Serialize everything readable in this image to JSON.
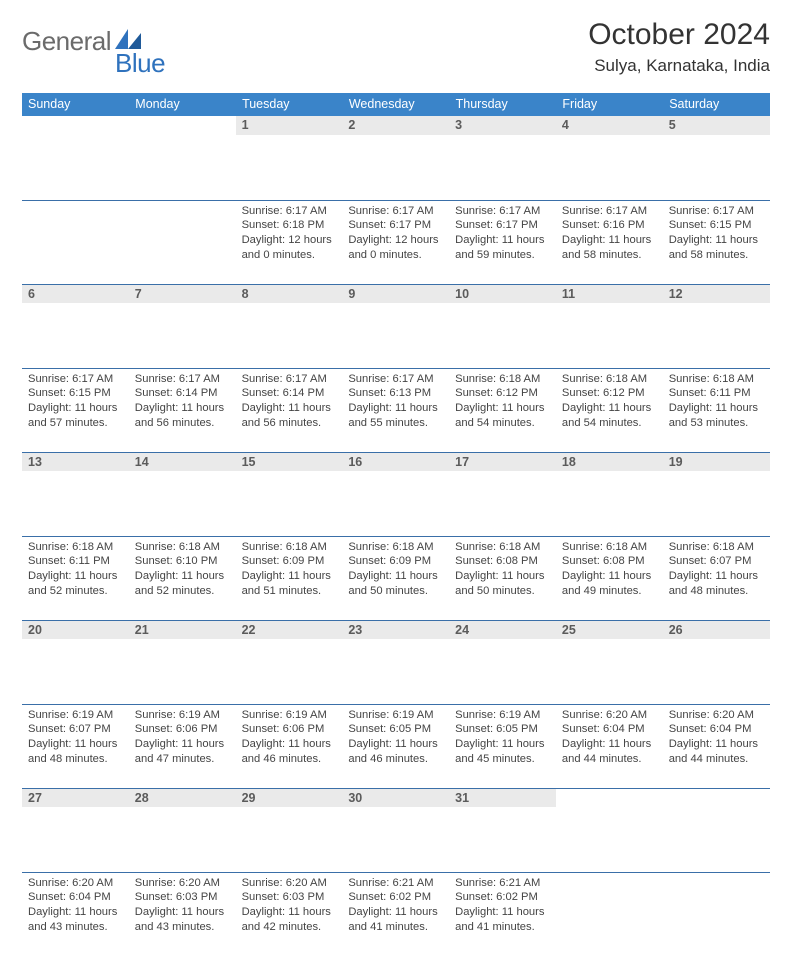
{
  "brand": {
    "word1": "General",
    "word2": "Blue",
    "word1_color": "#6b6b6b",
    "word2_color": "#2f72bd",
    "mark_color": "#2f72bd"
  },
  "title": {
    "month_year": "October 2024",
    "location": "Sulya, Karnataka, India"
  },
  "colors": {
    "header_bg": "#3a84c9",
    "header_text": "#ffffff",
    "daynum_bg": "#eaeaea",
    "row_divider": "#3a6fa8"
  },
  "weekdays": [
    "Sunday",
    "Monday",
    "Tuesday",
    "Wednesday",
    "Thursday",
    "Friday",
    "Saturday"
  ],
  "weeks": [
    [
      null,
      null,
      {
        "day": "1",
        "sunrise": "Sunrise: 6:17 AM",
        "sunset": "Sunset: 6:18 PM",
        "daylight1": "Daylight: 12 hours",
        "daylight2": "and 0 minutes."
      },
      {
        "day": "2",
        "sunrise": "Sunrise: 6:17 AM",
        "sunset": "Sunset: 6:17 PM",
        "daylight1": "Daylight: 12 hours",
        "daylight2": "and 0 minutes."
      },
      {
        "day": "3",
        "sunrise": "Sunrise: 6:17 AM",
        "sunset": "Sunset: 6:17 PM",
        "daylight1": "Daylight: 11 hours",
        "daylight2": "and 59 minutes."
      },
      {
        "day": "4",
        "sunrise": "Sunrise: 6:17 AM",
        "sunset": "Sunset: 6:16 PM",
        "daylight1": "Daylight: 11 hours",
        "daylight2": "and 58 minutes."
      },
      {
        "day": "5",
        "sunrise": "Sunrise: 6:17 AM",
        "sunset": "Sunset: 6:15 PM",
        "daylight1": "Daylight: 11 hours",
        "daylight2": "and 58 minutes."
      }
    ],
    [
      {
        "day": "6",
        "sunrise": "Sunrise: 6:17 AM",
        "sunset": "Sunset: 6:15 PM",
        "daylight1": "Daylight: 11 hours",
        "daylight2": "and 57 minutes."
      },
      {
        "day": "7",
        "sunrise": "Sunrise: 6:17 AM",
        "sunset": "Sunset: 6:14 PM",
        "daylight1": "Daylight: 11 hours",
        "daylight2": "and 56 minutes."
      },
      {
        "day": "8",
        "sunrise": "Sunrise: 6:17 AM",
        "sunset": "Sunset: 6:14 PM",
        "daylight1": "Daylight: 11 hours",
        "daylight2": "and 56 minutes."
      },
      {
        "day": "9",
        "sunrise": "Sunrise: 6:17 AM",
        "sunset": "Sunset: 6:13 PM",
        "daylight1": "Daylight: 11 hours",
        "daylight2": "and 55 minutes."
      },
      {
        "day": "10",
        "sunrise": "Sunrise: 6:18 AM",
        "sunset": "Sunset: 6:12 PM",
        "daylight1": "Daylight: 11 hours",
        "daylight2": "and 54 minutes."
      },
      {
        "day": "11",
        "sunrise": "Sunrise: 6:18 AM",
        "sunset": "Sunset: 6:12 PM",
        "daylight1": "Daylight: 11 hours",
        "daylight2": "and 54 minutes."
      },
      {
        "day": "12",
        "sunrise": "Sunrise: 6:18 AM",
        "sunset": "Sunset: 6:11 PM",
        "daylight1": "Daylight: 11 hours",
        "daylight2": "and 53 minutes."
      }
    ],
    [
      {
        "day": "13",
        "sunrise": "Sunrise: 6:18 AM",
        "sunset": "Sunset: 6:11 PM",
        "daylight1": "Daylight: 11 hours",
        "daylight2": "and 52 minutes."
      },
      {
        "day": "14",
        "sunrise": "Sunrise: 6:18 AM",
        "sunset": "Sunset: 6:10 PM",
        "daylight1": "Daylight: 11 hours",
        "daylight2": "and 52 minutes."
      },
      {
        "day": "15",
        "sunrise": "Sunrise: 6:18 AM",
        "sunset": "Sunset: 6:09 PM",
        "daylight1": "Daylight: 11 hours",
        "daylight2": "and 51 minutes."
      },
      {
        "day": "16",
        "sunrise": "Sunrise: 6:18 AM",
        "sunset": "Sunset: 6:09 PM",
        "daylight1": "Daylight: 11 hours",
        "daylight2": "and 50 minutes."
      },
      {
        "day": "17",
        "sunrise": "Sunrise: 6:18 AM",
        "sunset": "Sunset: 6:08 PM",
        "daylight1": "Daylight: 11 hours",
        "daylight2": "and 50 minutes."
      },
      {
        "day": "18",
        "sunrise": "Sunrise: 6:18 AM",
        "sunset": "Sunset: 6:08 PM",
        "daylight1": "Daylight: 11 hours",
        "daylight2": "and 49 minutes."
      },
      {
        "day": "19",
        "sunrise": "Sunrise: 6:18 AM",
        "sunset": "Sunset: 6:07 PM",
        "daylight1": "Daylight: 11 hours",
        "daylight2": "and 48 minutes."
      }
    ],
    [
      {
        "day": "20",
        "sunrise": "Sunrise: 6:19 AM",
        "sunset": "Sunset: 6:07 PM",
        "daylight1": "Daylight: 11 hours",
        "daylight2": "and 48 minutes."
      },
      {
        "day": "21",
        "sunrise": "Sunrise: 6:19 AM",
        "sunset": "Sunset: 6:06 PM",
        "daylight1": "Daylight: 11 hours",
        "daylight2": "and 47 minutes."
      },
      {
        "day": "22",
        "sunrise": "Sunrise: 6:19 AM",
        "sunset": "Sunset: 6:06 PM",
        "daylight1": "Daylight: 11 hours",
        "daylight2": "and 46 minutes."
      },
      {
        "day": "23",
        "sunrise": "Sunrise: 6:19 AM",
        "sunset": "Sunset: 6:05 PM",
        "daylight1": "Daylight: 11 hours",
        "daylight2": "and 46 minutes."
      },
      {
        "day": "24",
        "sunrise": "Sunrise: 6:19 AM",
        "sunset": "Sunset: 6:05 PM",
        "daylight1": "Daylight: 11 hours",
        "daylight2": "and 45 minutes."
      },
      {
        "day": "25",
        "sunrise": "Sunrise: 6:20 AM",
        "sunset": "Sunset: 6:04 PM",
        "daylight1": "Daylight: 11 hours",
        "daylight2": "and 44 minutes."
      },
      {
        "day": "26",
        "sunrise": "Sunrise: 6:20 AM",
        "sunset": "Sunset: 6:04 PM",
        "daylight1": "Daylight: 11 hours",
        "daylight2": "and 44 minutes."
      }
    ],
    [
      {
        "day": "27",
        "sunrise": "Sunrise: 6:20 AM",
        "sunset": "Sunset: 6:04 PM",
        "daylight1": "Daylight: 11 hours",
        "daylight2": "and 43 minutes."
      },
      {
        "day": "28",
        "sunrise": "Sunrise: 6:20 AM",
        "sunset": "Sunset: 6:03 PM",
        "daylight1": "Daylight: 11 hours",
        "daylight2": "and 43 minutes."
      },
      {
        "day": "29",
        "sunrise": "Sunrise: 6:20 AM",
        "sunset": "Sunset: 6:03 PM",
        "daylight1": "Daylight: 11 hours",
        "daylight2": "and 42 minutes."
      },
      {
        "day": "30",
        "sunrise": "Sunrise: 6:21 AM",
        "sunset": "Sunset: 6:02 PM",
        "daylight1": "Daylight: 11 hours",
        "daylight2": "and 41 minutes."
      },
      {
        "day": "31",
        "sunrise": "Sunrise: 6:21 AM",
        "sunset": "Sunset: 6:02 PM",
        "daylight1": "Daylight: 11 hours",
        "daylight2": "and 41 minutes."
      },
      null,
      null
    ]
  ]
}
